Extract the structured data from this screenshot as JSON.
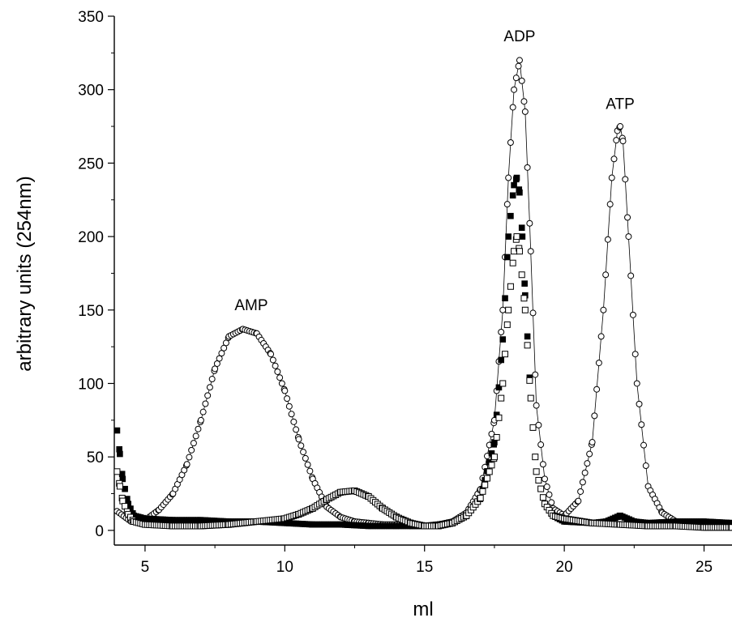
{
  "chart_data": {
    "type": "scatter",
    "title": "",
    "xlabel": "ml",
    "ylabel": "arbitrary units (254nm)",
    "xlim": [
      3.9,
      26
    ],
    "ylim": [
      -10,
      350
    ],
    "x_ticks": [
      5,
      10,
      15,
      20,
      25
    ],
    "y_ticks": [
      0,
      50,
      100,
      150,
      200,
      250,
      300,
      350
    ],
    "grid": false,
    "annotations": [
      {
        "text": "AMP",
        "x": 8.8,
        "y": 150
      },
      {
        "text": "ADP",
        "x": 18.4,
        "y": 333
      },
      {
        "text": "ATP",
        "x": 22.0,
        "y": 287
      }
    ],
    "series": [
      {
        "marker": "open-circle",
        "connected": true,
        "x": [
          4.0,
          4.5,
          5.0,
          5.5,
          6.0,
          6.5,
          7.0,
          7.5,
          8.0,
          8.5,
          9.0,
          9.5,
          10.0,
          10.5,
          11.0,
          11.5,
          12.0,
          12.5,
          13.0,
          13.5,
          14.0,
          14.5,
          15.0,
          15.5,
          16.0,
          16.5,
          17.0,
          17.5,
          17.8,
          18.0,
          18.2,
          18.4,
          18.6,
          18.8,
          19.0,
          19.3,
          19.6,
          20.0,
          20.5,
          21.0,
          21.4,
          21.7,
          21.9,
          22.0,
          22.1,
          22.3,
          22.6,
          23.0,
          23.5,
          24.0,
          24.5,
          25.0,
          25.5,
          26.0
        ],
        "values": [
          13,
          6,
          7,
          14,
          25,
          45,
          75,
          110,
          132,
          137,
          134,
          120,
          95,
          62,
          35,
          16,
          9,
          6,
          5,
          4,
          4,
          3,
          3,
          4,
          6,
          12,
          28,
          75,
          150,
          240,
          300,
          320,
          285,
          190,
          85,
          35,
          15,
          10,
          20,
          60,
          150,
          240,
          272,
          275,
          265,
          200,
          100,
          30,
          12,
          6,
          4,
          3,
          3,
          3
        ]
      },
      {
        "marker": "filled-square",
        "connected": false,
        "x": [
          4.0,
          4.1,
          4.2,
          4.4,
          4.6,
          5.0,
          6.0,
          7.0,
          8.0,
          9.0,
          10.0,
          11.0,
          12.0,
          13.0,
          14.0,
          15.0,
          16.0,
          16.5,
          17.0,
          17.5,
          17.8,
          18.0,
          18.2,
          18.3,
          18.4,
          18.5,
          18.6,
          18.8,
          19.0,
          19.3,
          19.6,
          20.0,
          21.0,
          21.5,
          22.0,
          22.5,
          23.0,
          24.0,
          25.0,
          26.0
        ],
        "values": [
          68,
          52,
          35,
          18,
          10,
          8,
          7,
          7,
          6,
          6,
          5,
          4,
          4,
          3,
          3,
          3,
          5,
          10,
          22,
          60,
          130,
          200,
          235,
          240,
          230,
          200,
          160,
          90,
          40,
          18,
          10,
          6,
          5,
          6,
          10,
          6,
          5,
          6,
          6,
          5
        ]
      },
      {
        "marker": "open-square",
        "connected": false,
        "x": [
          4.0,
          4.1,
          4.2,
          4.4,
          4.6,
          5.0,
          6.0,
          7.0,
          8.0,
          9.0,
          10.0,
          10.5,
          11.0,
          11.5,
          12.0,
          12.5,
          13.0,
          13.5,
          14.0,
          14.5,
          15.0,
          15.5,
          16.0,
          16.5,
          17.0,
          17.5,
          17.8,
          18.0,
          18.2,
          18.3,
          18.4,
          18.6,
          18.8,
          19.0,
          19.3,
          19.6,
          20.0,
          21.0,
          22.0,
          23.0,
          24.0,
          25.0,
          26.0
        ],
        "values": [
          40,
          30,
          20,
          11,
          6,
          4,
          3,
          3,
          4,
          6,
          8,
          11,
          15,
          21,
          26,
          27,
          23,
          15,
          9,
          5,
          3,
          3,
          5,
          10,
          22,
          50,
          100,
          150,
          190,
          200,
          190,
          150,
          90,
          40,
          18,
          10,
          8,
          5,
          4,
          3,
          3,
          2,
          2
        ]
      }
    ]
  }
}
